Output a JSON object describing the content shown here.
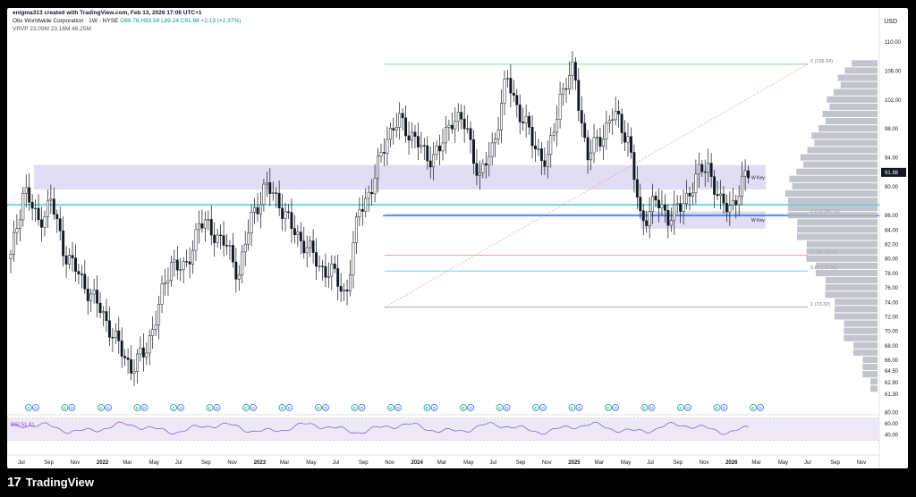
{
  "header": {
    "attribution": "enigma313 created with TradingView.com, Feb 13, 2026 17:06 UTC+1",
    "symbol": "Otis Worldwide Corporation · 1W · NYSE",
    "ohlc": "O89.76 H93.58 L89.24 C91.98 +2.13 (+2.37%)",
    "vrvp": "VRVP 23.09M 23.16M 46.25M"
  },
  "currency_label": "USD",
  "footer": {
    "brand": "TradingView",
    "logo": "17"
  },
  "colors": {
    "up": "#089981",
    "down": "#131722",
    "candle_body_up": "#ffffff",
    "zone": "#dcd8f2",
    "cyan_line": "#00bcd4",
    "blue_line": "#2962ff",
    "profile": "#b2b5be",
    "rsi_line": "#7e57c2",
    "rsi_band": "#ede7f6"
  },
  "chart_data": {
    "type": "candlestick",
    "price_axis": {
      "min": 61.3,
      "max": 111.0,
      "ticks": [
        110.0,
        106.0,
        102.0,
        98.0,
        94.0,
        91.98,
        90.0,
        86.0,
        84.0,
        82.0,
        80.0,
        78.0,
        76.0,
        74.0,
        72.0,
        70.0,
        68.0,
        66.0,
        64.5,
        62.9,
        61.3
      ],
      "highlight": 91.98
    },
    "time_axis": [
      "Jul",
      "Sep",
      "Nov",
      "2022",
      "Mar",
      "May",
      "Jul",
      "Sep",
      "Nov",
      "2023",
      "Mar",
      "May",
      "Jul",
      "Sep",
      "Nov",
      "2024",
      "Mar",
      "May",
      "Jul",
      "Sep",
      "Nov",
      "2025",
      "Mar",
      "May",
      "Jul",
      "Sep",
      "Nov",
      "2026",
      "Mar",
      "May",
      "Jul",
      "Sep",
      "Nov"
    ],
    "key_levels": [
      {
        "label": "W Key",
        "top": 93.0,
        "bottom": 89.6
      },
      {
        "label": "W Key",
        "top": 86.6,
        "bottom": 84.2
      }
    ],
    "horizontal_lines": [
      87.5,
      86.0
    ],
    "fibonacci": [
      {
        "level": "0 (106.94)",
        "price": 106.94
      },
      {
        "level": "0.618 (86.16)",
        "price": 86.16
      },
      {
        "level": "0.786 (80.5)",
        "price": 80.5
      },
      {
        "level": "0.85 (78.35)",
        "price": 78.35
      },
      {
        "level": "1 (73.32)",
        "price": 73.32
      }
    ],
    "price_path": [
      80,
      90,
      85,
      88,
      81,
      78,
      75,
      72,
      68,
      65,
      67,
      73,
      80,
      78,
      85,
      84,
      82,
      78,
      86,
      90,
      88,
      84,
      82,
      79,
      78,
      75,
      87,
      90,
      97,
      99,
      97,
      94,
      95,
      100,
      98,
      91,
      96,
      105,
      100,
      96,
      93,
      103,
      106,
      94,
      97,
      100,
      97,
      85,
      88,
      86,
      87,
      91,
      93,
      87,
      88,
      91.98
    ],
    "earnings_markers": [
      "E",
      "D",
      "E",
      "D",
      "E",
      "D",
      "E",
      "D",
      "E",
      "D",
      "E",
      "D",
      "E",
      "D",
      "E",
      "D",
      "E",
      "D",
      "E",
      "D",
      "E",
      "D",
      "E",
      "D",
      "E",
      "D",
      "E",
      "D",
      "E",
      "D",
      "E",
      "D",
      "E",
      "D",
      "E",
      "D",
      "E",
      "D",
      "E",
      "D",
      "E",
      "D"
    ],
    "rsi": {
      "label": "RSI 51.81",
      "value": 51.81,
      "ticks": [
        80.0,
        60.0,
        40.0
      ],
      "band": [
        30,
        70
      ]
    }
  }
}
